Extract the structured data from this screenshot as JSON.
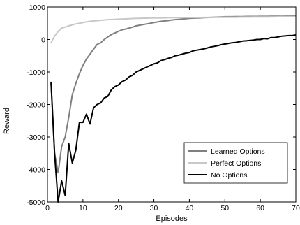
{
  "chart_data": {
    "type": "line",
    "xlabel": "Episodes",
    "ylabel": "Reward",
    "xlim": [
      0,
      70
    ],
    "ylim": [
      -5000,
      1000
    ],
    "xticks": [
      0,
      10,
      20,
      30,
      40,
      50,
      60,
      70
    ],
    "yticks": [
      -5000,
      -4000,
      -3000,
      -2000,
      -1000,
      0,
      1000
    ],
    "grid": false,
    "legend_position": "bottom-right",
    "series": [
      {
        "name": "Learned Options",
        "color": "#7f7f7f",
        "x": [
          1,
          2,
          3,
          4,
          5,
          6,
          7,
          8,
          9,
          10,
          11,
          12,
          13,
          14,
          15,
          16,
          17,
          18,
          19,
          20,
          21,
          22,
          23,
          24,
          25,
          26,
          27,
          28,
          29,
          30,
          31,
          32,
          33,
          34,
          35,
          36,
          37,
          38,
          39,
          40,
          41,
          42,
          43,
          44,
          45,
          46,
          47,
          48,
          49,
          50,
          51,
          52,
          53,
          54,
          55,
          56,
          57,
          58,
          59,
          60,
          61,
          62,
          63,
          64,
          65,
          66,
          67,
          68,
          69,
          70
        ],
        "values": [
          -1300,
          -3500,
          -4100,
          -3300,
          -3000,
          -2400,
          -1700,
          -1350,
          -1050,
          -800,
          -600,
          -450,
          -300,
          -150,
          -100,
          0,
          80,
          150,
          200,
          250,
          300,
          320,
          350,
          380,
          420,
          440,
          460,
          480,
          500,
          520,
          540,
          560,
          570,
          580,
          600,
          610,
          620,
          630,
          640,
          650,
          655,
          660,
          665,
          670,
          675,
          680,
          685,
          690,
          695,
          700,
          700,
          700,
          705,
          705,
          705,
          710,
          710,
          710,
          710,
          712,
          712,
          712,
          715,
          715,
          715,
          715,
          718,
          718,
          720,
          720
        ]
      },
      {
        "name": "Perfect Options",
        "color": "#c8c8c8",
        "x": [
          1,
          2,
          3,
          4,
          5,
          6,
          7,
          8,
          9,
          10,
          11,
          12,
          13,
          14,
          15,
          16,
          17,
          18,
          19,
          20,
          21,
          22,
          23,
          24,
          25,
          26,
          27,
          28,
          29,
          30,
          31,
          32,
          33,
          34,
          35,
          36,
          37,
          38,
          39,
          40,
          41,
          42,
          43,
          44,
          45,
          46,
          47,
          48,
          49,
          50,
          51,
          52,
          53,
          54,
          55,
          56,
          57,
          58,
          59,
          60,
          61,
          62,
          63,
          64,
          65,
          66,
          67,
          68,
          69,
          70
        ],
        "values": [
          -100,
          100,
          250,
          350,
          380,
          420,
          450,
          480,
          500,
          520,
          540,
          560,
          570,
          580,
          590,
          600,
          610,
          615,
          620,
          625,
          630,
          635,
          640,
          645,
          650,
          650,
          655,
          655,
          660,
          660,
          660,
          665,
          665,
          668,
          670,
          670,
          672,
          672,
          675,
          675,
          676,
          677,
          678,
          680,
          680,
          680,
          682,
          682,
          684,
          685,
          685,
          686,
          687,
          688,
          690,
          690,
          690,
          692,
          692,
          694,
          695,
          695,
          696,
          697,
          698,
          700,
          700,
          702,
          703,
          705
        ]
      },
      {
        "name": "No Options",
        "color": "#000000",
        "x": [
          1,
          2,
          3,
          4,
          5,
          6,
          7,
          8,
          9,
          10,
          11,
          12,
          13,
          14,
          15,
          16,
          17,
          18,
          19,
          20,
          21,
          22,
          23,
          24,
          25,
          26,
          27,
          28,
          29,
          30,
          31,
          32,
          33,
          34,
          35,
          36,
          37,
          38,
          39,
          40,
          41,
          42,
          43,
          44,
          45,
          46,
          47,
          48,
          49,
          50,
          51,
          52,
          53,
          54,
          55,
          56,
          57,
          58,
          59,
          60,
          61,
          62,
          63,
          64,
          65,
          66,
          67,
          68,
          69,
          70
        ],
        "values": [
          -1300,
          -3500,
          -5000,
          -4350,
          -4800,
          -3200,
          -3800,
          -3400,
          -2550,
          -2550,
          -2300,
          -2600,
          -2100,
          -2000,
          -1950,
          -1800,
          -1750,
          -1550,
          -1450,
          -1400,
          -1300,
          -1250,
          -1150,
          -1100,
          -1000,
          -950,
          -900,
          -850,
          -800,
          -750,
          -720,
          -650,
          -620,
          -580,
          -550,
          -500,
          -480,
          -450,
          -420,
          -400,
          -350,
          -330,
          -310,
          -290,
          -260,
          -230,
          -210,
          -190,
          -160,
          -140,
          -120,
          -100,
          -90,
          -70,
          -50,
          -40,
          -30,
          -20,
          0,
          0,
          30,
          20,
          60,
          60,
          80,
          100,
          110,
          120,
          120,
          140
        ]
      }
    ]
  }
}
